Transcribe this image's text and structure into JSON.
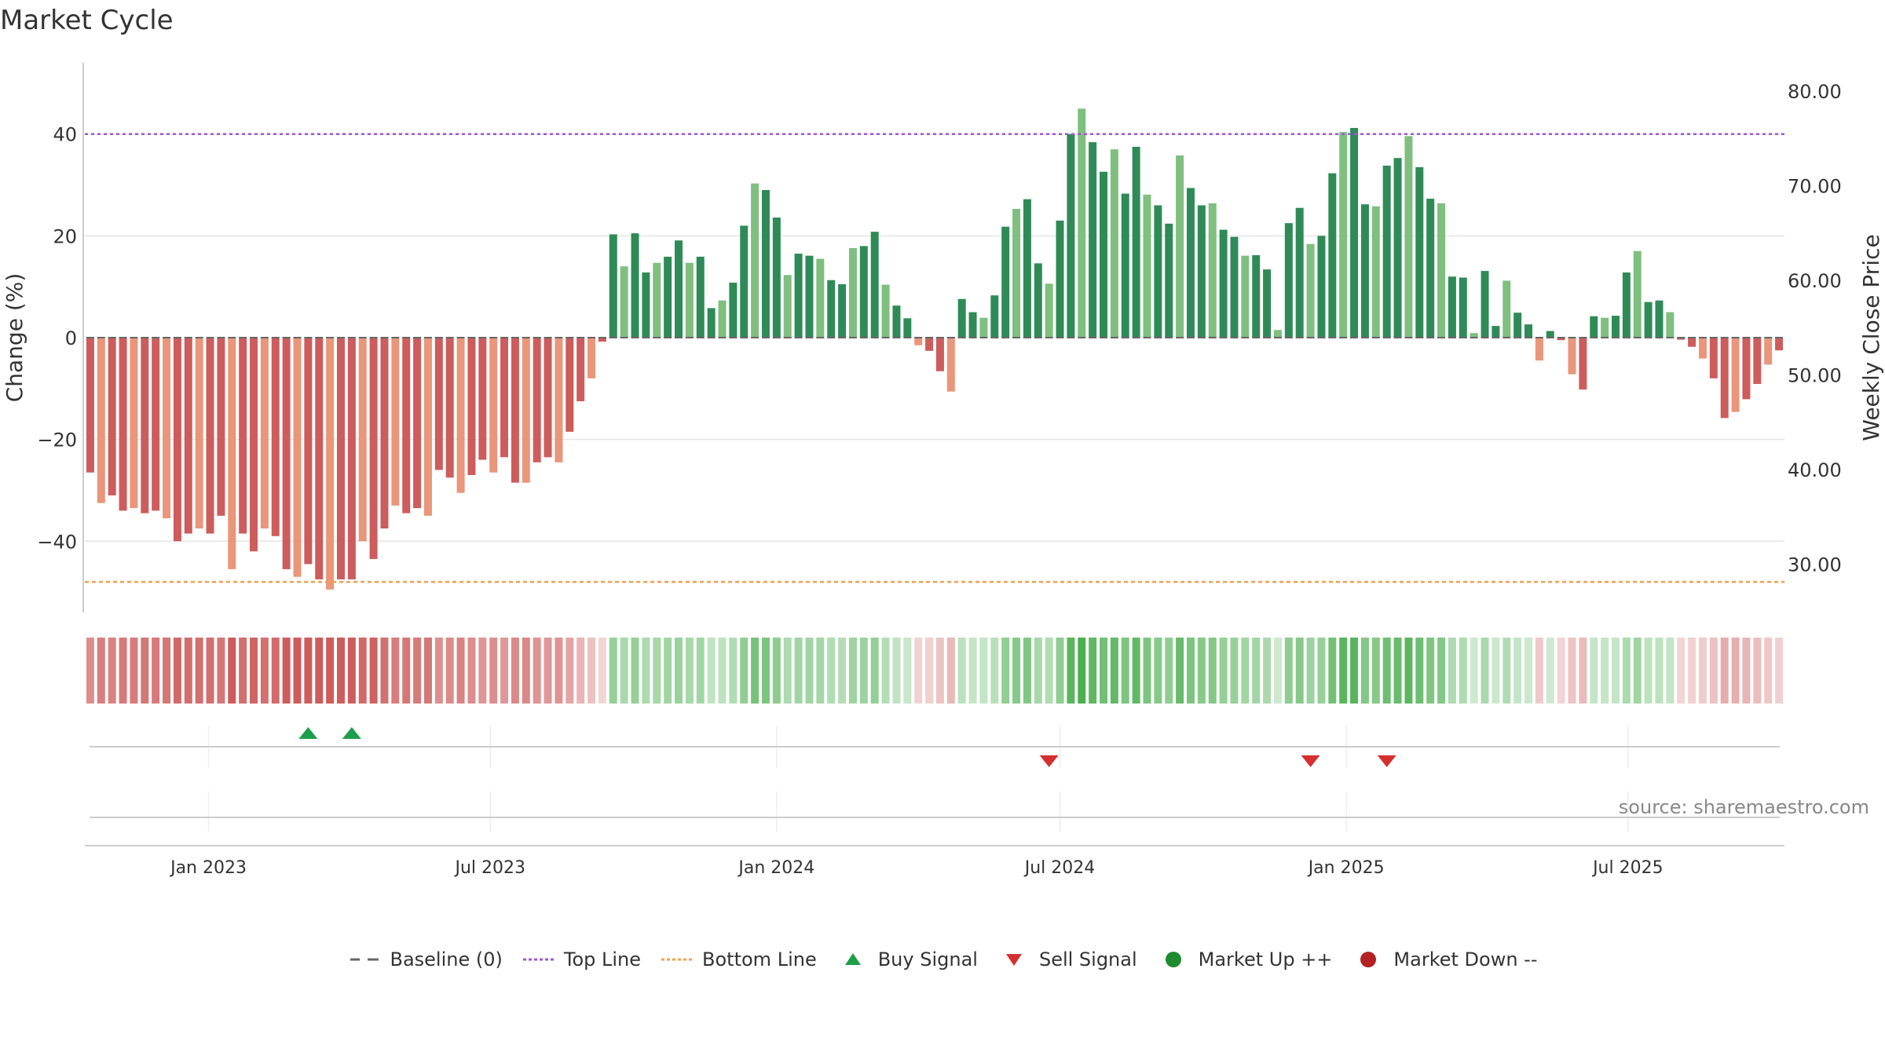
{
  "page": {
    "title": "Market Cycle",
    "source": "source: sharemaestro.com"
  },
  "legend": {
    "items": [
      {
        "label": "Baseline (0)",
        "icon": "dash-line-icon",
        "color": "#666666"
      },
      {
        "label": "Top Line",
        "icon": "dotted-line-icon",
        "color": "#9b59d0"
      },
      {
        "label": "Bottom Line",
        "icon": "dotted-line-icon",
        "color": "#f0a050"
      },
      {
        "label": "Buy Signal",
        "icon": "triangle-up-icon",
        "color": "#1e9e4a"
      },
      {
        "label": "Sell Signal",
        "icon": "triangle-down-icon",
        "color": "#d62f2f"
      },
      {
        "label": "Market Up ++",
        "icon": "circle-icon",
        "color": "#1f8a2e"
      },
      {
        "label": "Market Down --",
        "icon": "circle-icon",
        "color": "#b22222"
      }
    ]
  },
  "chart_data": {
    "type": "bar",
    "ylabel": "Change (%)",
    "y2label": "Weekly Close Price",
    "ylim": [
      -54,
      54
    ],
    "yticks": [
      -40,
      -20,
      0,
      20,
      40
    ],
    "ytick_labels": [
      "−40",
      "−20",
      "0",
      "20",
      "40"
    ],
    "y2lim": [
      24.9,
      83.0
    ],
    "y2ticks": [
      30,
      40,
      50,
      60,
      70,
      80
    ],
    "y2tick_labels": [
      "30.00",
      "40.00",
      "50.00",
      "60.00",
      "70.00",
      "80.00"
    ],
    "top_line": 40,
    "bottom_line": -48,
    "baseline": 0,
    "grid": true,
    "legend_position": "bottom",
    "x_start": "2022-10-17",
    "x_end": "2025-10-06",
    "x_ticks": [
      "2023-01-01",
      "2023-07-01",
      "2024-01-01",
      "2024-07-01",
      "2025-01-01",
      "2025-07-01"
    ],
    "x_tick_labels": [
      "Jan 2023",
      "Jul 2023",
      "Jan 2024",
      "Jul 2024",
      "Jan 2025",
      "Jul 2025"
    ],
    "weeks": [
      {
        "date": "2022-10-17",
        "change": -26.5
      },
      {
        "date": "2022-10-24",
        "change": -32.5
      },
      {
        "date": "2022-10-31",
        "change": -31.0
      },
      {
        "date": "2022-11-07",
        "change": -34.0
      },
      {
        "date": "2022-11-14",
        "change": -33.5
      },
      {
        "date": "2022-11-21",
        "change": -34.5
      },
      {
        "date": "2022-11-28",
        "change": -34.0
      },
      {
        "date": "2022-12-05",
        "change": -35.5
      },
      {
        "date": "2022-12-12",
        "change": -40.0
      },
      {
        "date": "2022-12-19",
        "change": -38.5
      },
      {
        "date": "2022-12-26",
        "change": -37.5
      },
      {
        "date": "2023-01-02",
        "change": -38.5
      },
      {
        "date": "2023-01-09",
        "change": -35.0
      },
      {
        "date": "2023-01-16",
        "change": -45.5
      },
      {
        "date": "2023-01-23",
        "change": -38.5
      },
      {
        "date": "2023-01-30",
        "change": -42.0
      },
      {
        "date": "2023-02-06",
        "change": -37.5
      },
      {
        "date": "2023-02-13",
        "change": -39.0
      },
      {
        "date": "2023-02-20",
        "change": -45.5
      },
      {
        "date": "2023-02-27",
        "change": -47.0
      },
      {
        "date": "2023-03-06",
        "change": -44.5
      },
      {
        "date": "2023-03-13",
        "change": -47.5
      },
      {
        "date": "2023-03-20",
        "change": -49.5
      },
      {
        "date": "2023-03-27",
        "change": -47.5
      },
      {
        "date": "2023-04-03",
        "change": -47.5
      },
      {
        "date": "2023-04-10",
        "change": -40.0
      },
      {
        "date": "2023-04-17",
        "change": -43.5
      },
      {
        "date": "2023-04-24",
        "change": -37.5
      },
      {
        "date": "2023-05-01",
        "change": -33.0
      },
      {
        "date": "2023-05-08",
        "change": -34.5
      },
      {
        "date": "2023-05-15",
        "change": -33.5
      },
      {
        "date": "2023-05-22",
        "change": -35.0
      },
      {
        "date": "2023-05-29",
        "change": -26.0
      },
      {
        "date": "2023-06-05",
        "change": -27.5
      },
      {
        "date": "2023-06-12",
        "change": -30.5
      },
      {
        "date": "2023-06-19",
        "change": -27.0
      },
      {
        "date": "2023-06-26",
        "change": -24.0
      },
      {
        "date": "2023-07-03",
        "change": -26.5
      },
      {
        "date": "2023-07-10",
        "change": -23.5
      },
      {
        "date": "2023-07-17",
        "change": -28.5
      },
      {
        "date": "2023-07-24",
        "change": -28.5
      },
      {
        "date": "2023-07-31",
        "change": -24.5
      },
      {
        "date": "2023-08-07",
        "change": -23.5
      },
      {
        "date": "2023-08-14",
        "change": -24.5
      },
      {
        "date": "2023-08-21",
        "change": -18.5
      },
      {
        "date": "2023-08-28",
        "change": -12.5
      },
      {
        "date": "2023-09-04",
        "change": -8.0
      },
      {
        "date": "2023-09-11",
        "change": -0.8
      },
      {
        "date": "2023-09-18",
        "change": 20.3
      },
      {
        "date": "2023-09-25",
        "change": 14.0
      },
      {
        "date": "2023-10-02",
        "change": 20.5
      },
      {
        "date": "2023-10-09",
        "change": 12.8
      },
      {
        "date": "2023-10-16",
        "change": 14.7
      },
      {
        "date": "2023-10-23",
        "change": 15.9
      },
      {
        "date": "2023-10-30",
        "change": 19.1
      },
      {
        "date": "2023-11-06",
        "change": 14.7
      },
      {
        "date": "2023-11-13",
        "change": 15.9
      },
      {
        "date": "2023-11-20",
        "change": 5.8
      },
      {
        "date": "2023-11-27",
        "change": 7.3
      },
      {
        "date": "2023-12-04",
        "change": 10.8
      },
      {
        "date": "2023-12-11",
        "change": 22.0
      },
      {
        "date": "2023-12-18",
        "change": 30.3
      },
      {
        "date": "2023-12-25",
        "change": 29.0
      },
      {
        "date": "2024-01-01",
        "change": 23.6
      },
      {
        "date": "2024-01-08",
        "change": 12.3
      },
      {
        "date": "2024-01-15",
        "change": 16.5
      },
      {
        "date": "2024-01-22",
        "change": 16.1
      },
      {
        "date": "2024-01-29",
        "change": 15.5
      },
      {
        "date": "2024-02-05",
        "change": 11.3
      },
      {
        "date": "2024-02-12",
        "change": 10.5
      },
      {
        "date": "2024-02-19",
        "change": 17.6
      },
      {
        "date": "2024-02-26",
        "change": 18.0
      },
      {
        "date": "2024-03-04",
        "change": 20.8
      },
      {
        "date": "2024-03-11",
        "change": 10.4
      },
      {
        "date": "2024-03-18",
        "change": 6.3
      },
      {
        "date": "2024-03-25",
        "change": 3.8
      },
      {
        "date": "2024-04-01",
        "change": -1.5
      },
      {
        "date": "2024-04-08",
        "change": -2.6
      },
      {
        "date": "2024-04-15",
        "change": -6.6
      },
      {
        "date": "2024-04-22",
        "change": -10.6
      },
      {
        "date": "2024-04-29",
        "change": 7.6
      },
      {
        "date": "2024-05-06",
        "change": 5.0
      },
      {
        "date": "2024-05-13",
        "change": 3.9
      },
      {
        "date": "2024-05-20",
        "change": 8.3
      },
      {
        "date": "2024-05-27",
        "change": 21.8
      },
      {
        "date": "2024-06-03",
        "change": 25.3
      },
      {
        "date": "2024-06-10",
        "change": 27.2
      },
      {
        "date": "2024-06-17",
        "change": 14.6
      },
      {
        "date": "2024-06-24",
        "change": 10.6
      },
      {
        "date": "2024-07-01",
        "change": 23.0
      },
      {
        "date": "2024-07-08",
        "change": 40.0
      },
      {
        "date": "2024-07-15",
        "change": 45.0
      },
      {
        "date": "2024-07-22",
        "change": 38.4
      },
      {
        "date": "2024-07-29",
        "change": 32.6
      },
      {
        "date": "2024-08-05",
        "change": 37.0
      },
      {
        "date": "2024-08-12",
        "change": 28.3
      },
      {
        "date": "2024-08-19",
        "change": 37.5
      },
      {
        "date": "2024-08-26",
        "change": 28.1
      },
      {
        "date": "2024-09-02",
        "change": 26.0
      },
      {
        "date": "2024-09-09",
        "change": 22.4
      },
      {
        "date": "2024-09-16",
        "change": 35.8
      },
      {
        "date": "2024-09-23",
        "change": 29.4
      },
      {
        "date": "2024-09-30",
        "change": 26.0
      },
      {
        "date": "2024-10-07",
        "change": 26.4
      },
      {
        "date": "2024-10-14",
        "change": 21.2
      },
      {
        "date": "2024-10-21",
        "change": 19.8
      },
      {
        "date": "2024-10-28",
        "change": 16.1
      },
      {
        "date": "2024-11-04",
        "change": 16.2
      },
      {
        "date": "2024-11-11",
        "change": 13.4
      },
      {
        "date": "2024-11-18",
        "change": 1.5
      },
      {
        "date": "2024-11-25",
        "change": 22.5
      },
      {
        "date": "2024-12-02",
        "change": 25.5
      },
      {
        "date": "2024-12-09",
        "change": 18.4
      },
      {
        "date": "2024-12-16",
        "change": 20.0
      },
      {
        "date": "2024-12-23",
        "change": 32.3
      },
      {
        "date": "2024-12-30",
        "change": 40.4
      },
      {
        "date": "2025-01-06",
        "change": 41.2
      },
      {
        "date": "2025-01-13",
        "change": 26.2
      },
      {
        "date": "2025-01-20",
        "change": 25.8
      },
      {
        "date": "2025-01-27",
        "change": 33.8
      },
      {
        "date": "2025-02-03",
        "change": 35.3
      },
      {
        "date": "2025-02-10",
        "change": 39.6
      },
      {
        "date": "2025-02-17",
        "change": 33.5
      },
      {
        "date": "2025-02-24",
        "change": 27.3
      },
      {
        "date": "2025-03-03",
        "change": 26.4
      },
      {
        "date": "2025-03-10",
        "change": 12.0
      },
      {
        "date": "2025-03-17",
        "change": 11.8
      },
      {
        "date": "2025-03-24",
        "change": 0.9
      },
      {
        "date": "2025-03-31",
        "change": 13.1
      },
      {
        "date": "2025-04-07",
        "change": 2.3
      },
      {
        "date": "2025-04-14",
        "change": 11.2
      },
      {
        "date": "2025-04-21",
        "change": 4.9
      },
      {
        "date": "2025-04-28",
        "change": 2.6
      },
      {
        "date": "2025-05-05",
        "change": -4.5
      },
      {
        "date": "2025-05-12",
        "change": 1.3
      },
      {
        "date": "2025-05-19",
        "change": -0.5
      },
      {
        "date": "2025-05-26",
        "change": -7.2
      },
      {
        "date": "2025-06-02",
        "change": -10.2
      },
      {
        "date": "2025-06-09",
        "change": 4.2
      },
      {
        "date": "2025-06-16",
        "change": 3.9
      },
      {
        "date": "2025-06-23",
        "change": 4.3
      },
      {
        "date": "2025-06-30",
        "change": 12.8
      },
      {
        "date": "2025-07-07",
        "change": 17.0
      },
      {
        "date": "2025-07-14",
        "change": 7.0
      },
      {
        "date": "2025-07-21",
        "change": 7.3
      },
      {
        "date": "2025-07-28",
        "change": 5.0
      },
      {
        "date": "2025-08-04",
        "change": -0.4
      },
      {
        "date": "2025-08-11",
        "change": -1.8
      },
      {
        "date": "2025-08-18",
        "change": -4.1
      },
      {
        "date": "2025-08-25",
        "change": -8.0
      },
      {
        "date": "2025-09-01",
        "change": -15.8
      },
      {
        "date": "2025-09-08",
        "change": -14.6
      },
      {
        "date": "2025-09-15",
        "change": -12.1
      },
      {
        "date": "2025-09-22",
        "change": -9.1
      },
      {
        "date": "2025-09-29",
        "change": -5.3
      },
      {
        "date": "2025-10-06",
        "change": -2.5
      }
    ],
    "buy_signals": [
      "2023-03-06",
      "2023-04-03"
    ],
    "sell_signals": [
      "2024-06-24",
      "2024-12-09",
      "2025-01-27"
    ],
    "colors": {
      "strong_down": "#cd5c5c",
      "weak_down": "#e9967a",
      "strong_up": "#2e8b57",
      "weak_up": "#7fbf7f",
      "top_line": "#9b59d0",
      "bottom_line": "#f0a050",
      "buy": "#1e9e4a",
      "sell": "#d62f2f",
      "strip_up": "#4caf50",
      "strip_down": "#cd5c5c",
      "grid": "#e6e6e6",
      "axis": "#bbbbbb"
    }
  }
}
